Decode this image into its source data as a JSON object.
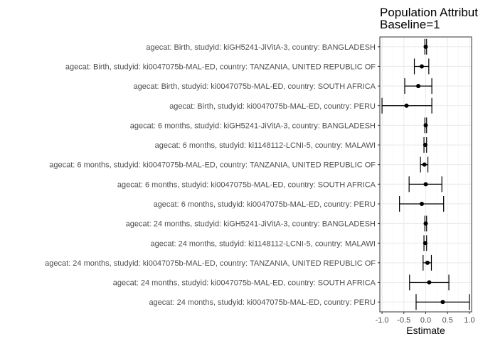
{
  "chart_data": {
    "type": "scatter",
    "title_lines": [
      "Population Attributable",
      "Baseline=1"
    ],
    "xlabel": "Estimate",
    "ylabel": "",
    "xlim": [
      -1.05,
      1.05
    ],
    "xticks": [
      -1.0,
      -0.5,
      0.0,
      0.5,
      1.0
    ],
    "xtick_labels": [
      "-1.0",
      "-0.5",
      "0.0",
      "0.5",
      "1.0"
    ],
    "grid": true,
    "legend": "none",
    "colors": {
      "point": "#000000",
      "grid_major": "#ebebeb",
      "grid_minor": "#f5f5f5",
      "panel_border": "#333333"
    },
    "rows": [
      {
        "label": "agecat: Birth, studyid: kiGH5241-JiVitA-3, country: BANGLADESH",
        "estimate": 0.0,
        "lower": -0.02,
        "upper": 0.02
      },
      {
        "label": "agecat: Birth, studyid: ki0047075b-MAL-ED, country: TANZANIA, UNITED REPUBLIC OF",
        "estimate": -0.09,
        "lower": -0.26,
        "upper": 0.07
      },
      {
        "label": "agecat: Birth, studyid: ki0047075b-MAL-ED, country: SOUTH AFRICA",
        "estimate": -0.17,
        "lower": -0.48,
        "upper": 0.14
      },
      {
        "label": "agecat: Birth, studyid: ki0047075b-MAL-ED, country: PERU",
        "estimate": -0.44,
        "lower": -1.0,
        "upper": 0.14
      },
      {
        "label": "agecat: 6 months, studyid: kiGH5241-JiVitA-3, country: BANGLADESH",
        "estimate": 0.0,
        "lower": -0.02,
        "upper": 0.02
      },
      {
        "label": "agecat: 6 months, studyid: ki1148112-LCNI-5, country: MALAWI",
        "estimate": -0.01,
        "lower": -0.04,
        "upper": 0.02
      },
      {
        "label": "agecat: 6 months, studyid: ki0047075b-MAL-ED, country: TANZANIA, UNITED REPUBLIC OF",
        "estimate": -0.03,
        "lower": -0.12,
        "upper": 0.05
      },
      {
        "label": "agecat: 6 months, studyid: ki0047075b-MAL-ED, country: SOUTH AFRICA",
        "estimate": 0.0,
        "lower": -0.38,
        "upper": 0.37
      },
      {
        "label": "agecat: 6 months, studyid: ki0047075b-MAL-ED, country: PERU",
        "estimate": -0.09,
        "lower": -0.6,
        "upper": 0.41
      },
      {
        "label": "agecat: 24 months, studyid: kiGH5241-JiVitA-3, country: BANGLADESH",
        "estimate": 0.0,
        "lower": -0.02,
        "upper": 0.02
      },
      {
        "label": "agecat: 24 months, studyid: ki1148112-LCNI-5, country: MALAWI",
        "estimate": -0.01,
        "lower": -0.04,
        "upper": 0.02
      },
      {
        "label": "agecat: 24 months, studyid: ki0047075b-MAL-ED, country: TANZANIA, UNITED REPUBLIC OF",
        "estimate": 0.04,
        "lower": -0.06,
        "upper": 0.13
      },
      {
        "label": "agecat: 24 months, studyid: ki0047075b-MAL-ED, country: SOUTH AFRICA",
        "estimate": 0.08,
        "lower": -0.37,
        "upper": 0.53
      },
      {
        "label": "agecat: 24 months, studyid: ki0047075b-MAL-ED, country: PERU",
        "estimate": 0.39,
        "lower": -0.22,
        "upper": 1.0
      }
    ]
  }
}
